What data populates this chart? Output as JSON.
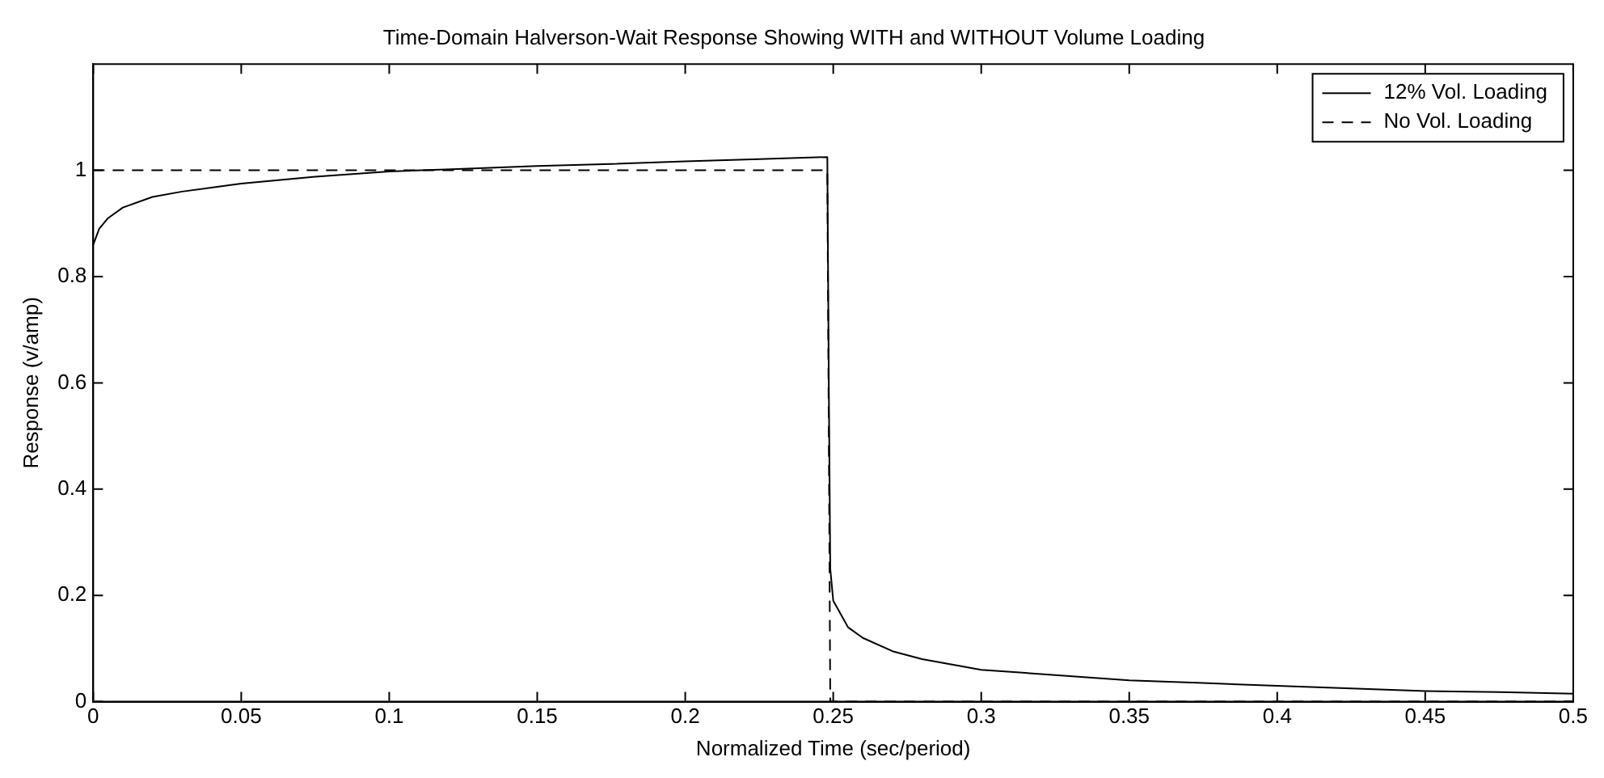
{
  "chart_data": {
    "type": "line",
    "title": "Time-Domain Halverson-Wait Response Showing WITH and WITHOUT Volume Loading",
    "xlabel": "Normalized Time (sec/period)",
    "ylabel": "Response (v/amp)",
    "xlim": [
      0,
      0.5
    ],
    "xticks": [
      0,
      0.05,
      0.1,
      0.15,
      0.2,
      0.25,
      0.3,
      0.35,
      0.4,
      0.45,
      0.5
    ],
    "ylim": [
      0,
      1.2
    ],
    "yticks": [
      0,
      0.2,
      0.4,
      0.6,
      0.8,
      1
    ],
    "grid": false,
    "legend": "top right",
    "marker": "none",
    "series": [
      {
        "name": "12% Vol. Loading",
        "color": "#000000",
        "line_style": "solid",
        "x": [
          0,
          0.002,
          0.005,
          0.01,
          0.02,
          0.03,
          0.05,
          0.075,
          0.1,
          0.125,
          0.15,
          0.175,
          0.2,
          0.225,
          0.248,
          0.2485,
          0.249,
          0.25,
          0.255,
          0.26,
          0.27,
          0.28,
          0.3,
          0.325,
          0.35,
          0.375,
          0.4,
          0.425,
          0.45,
          0.475,
          0.5
        ],
        "values": [
          0.86,
          0.89,
          0.91,
          0.93,
          0.95,
          0.96,
          0.975,
          0.988,
          0.998,
          1.003,
          1.008,
          1.012,
          1.017,
          1.021,
          1.025,
          0.6,
          0.25,
          0.19,
          0.14,
          0.12,
          0.095,
          0.08,
          0.06,
          0.05,
          0.04,
          0.035,
          0.03,
          0.025,
          0.02,
          0.018,
          0.015
        ]
      },
      {
        "name": "No Vol. Loading",
        "color": "#000000",
        "line_style": "dashed",
        "x": [
          0,
          0.1,
          0.2,
          0.248,
          0.249,
          0.3,
          0.4,
          0.5
        ],
        "values": [
          1,
          1,
          1,
          1,
          0,
          0,
          0,
          0
        ]
      }
    ]
  }
}
